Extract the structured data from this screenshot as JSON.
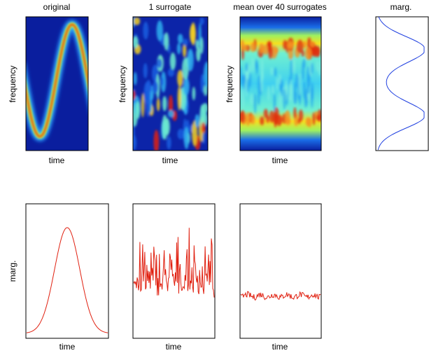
{
  "top_panels": [
    {
      "title": "original",
      "x_label": "time",
      "y_label": "frequency"
    },
    {
      "title": "1 surrogate",
      "x_label": "time",
      "y_label": "frequency"
    },
    {
      "title": "mean over 40 surrogates",
      "x_label": "time",
      "y_label": "frequency"
    },
    {
      "title": "marg."
    }
  ],
  "bottom_panels": [
    {
      "x_label": "time",
      "y_label": "marg."
    },
    {
      "x_label": "time"
    },
    {
      "x_label": "time"
    }
  ]
}
